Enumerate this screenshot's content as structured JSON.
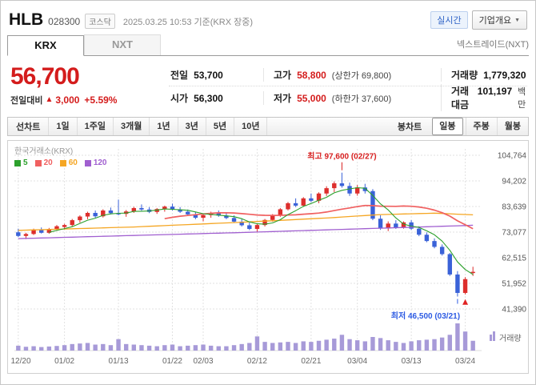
{
  "header": {
    "name": "HLB",
    "code": "028300",
    "market": "코스닥",
    "timestamp": "2025.03.25 10:53 기준(KRX 장중)",
    "realtime_label": "실시간",
    "overview_label": "기업개요"
  },
  "tabs": {
    "krx": "KRX",
    "nxt": "NXT",
    "nxt_link": "넥스트레이드(NXT)"
  },
  "price": {
    "current": "56,700",
    "change_label": "전일대비",
    "change_arrow": "▲",
    "change_value": "3,000",
    "change_percent": "+5.59%",
    "up_color": "#d41c1c"
  },
  "quote": {
    "rows": [
      {
        "c1_label": "전일",
        "c1_value": "53,700",
        "c2_label": "고가",
        "c2_value": "58,800",
        "c2_extra": "(상한가 69,800)",
        "c3_label": "거래량",
        "c3_value": "1,779,320",
        "c3_unit": ""
      },
      {
        "c1_label": "시가",
        "c1_value": "56,300",
        "c2_label": "저가",
        "c2_value": "55,000",
        "c2_extra": "(하한가 37,600)",
        "c3_label": "거래대금",
        "c3_value": "101,197",
        "c3_unit": "백만"
      }
    ]
  },
  "toolbar": {
    "line_chart_label": "선차트",
    "periods": [
      "1일",
      "1주일",
      "3개월",
      "1년",
      "3년",
      "5년",
      "10년"
    ],
    "bong_label": "봉차트",
    "bong_items": [
      "일봉",
      "주봉",
      "월봉"
    ],
    "bong_active": "일봉"
  },
  "chart": {
    "exchange_label": "한국거래소(KRX)",
    "volume_label": "거래량",
    "ma_legend": [
      {
        "label": "5",
        "color": "#2ca02c"
      },
      {
        "label": "20",
        "color": "#f06060"
      },
      {
        "label": "60",
        "color": "#f5a623"
      },
      {
        "label": "120",
        "color": "#a05fd0"
      }
    ]
  },
  "chart_data": {
    "type": "candlestick",
    "title": "HLB daily candles with volume, KRX",
    "y_axis_values": [
      104764,
      94202,
      83639,
      73077,
      62515,
      51952,
      41390
    ],
    "y_axis_labels": [
      "104,764",
      "94,202",
      "83,639",
      "73,077",
      "62,515",
      "51,952",
      "41,390"
    ],
    "x_ticks": [
      [
        0,
        "12/20"
      ],
      [
        6,
        "01/02"
      ],
      [
        13,
        "01/13"
      ],
      [
        20,
        "01/22"
      ],
      [
        24,
        "02/03"
      ],
      [
        31,
        "02/12"
      ],
      [
        38,
        "02/21"
      ],
      [
        44,
        "03/04"
      ],
      [
        51,
        "03/13"
      ],
      [
        58,
        "03/24"
      ]
    ],
    "candles": [
      [
        73000,
        74500,
        71000,
        71500,
        0.18
      ],
      [
        71500,
        72800,
        70200,
        72300,
        0.14
      ],
      [
        72300,
        74500,
        71900,
        74000,
        0.16
      ],
      [
        74000,
        75000,
        72500,
        72800,
        0.13
      ],
      [
        72800,
        74800,
        72400,
        74300,
        0.15
      ],
      [
        74300,
        76000,
        73600,
        75500,
        0.17
      ],
      [
        75200,
        76500,
        74100,
        76000,
        0.2
      ],
      [
        76000,
        78500,
        75400,
        78000,
        0.24
      ],
      [
        78000,
        80000,
        77000,
        79500,
        0.26
      ],
      [
        79500,
        81500,
        78400,
        81000,
        0.28
      ],
      [
        81000,
        82000,
        79000,
        79600,
        0.22
      ],
      [
        79600,
        82500,
        79100,
        82000,
        0.24
      ],
      [
        82000,
        83200,
        80400,
        80900,
        0.2
      ],
      [
        80900,
        86500,
        80000,
        80600,
        0.42
      ],
      [
        80600,
        82200,
        79400,
        81600,
        0.24
      ],
      [
        81600,
        83500,
        81000,
        83000,
        0.22
      ],
      [
        83000,
        84500,
        81900,
        82400,
        0.2
      ],
      [
        82400,
        83400,
        80900,
        81400,
        0.18
      ],
      [
        81400,
        83000,
        80600,
        82600,
        0.16
      ],
      [
        82600,
        84000,
        81500,
        83600,
        0.2
      ],
      [
        83600,
        84800,
        82000,
        82400,
        0.22
      ],
      [
        82400,
        83400,
        81000,
        81500,
        0.16
      ],
      [
        81500,
        82400,
        79900,
        80400,
        0.18
      ],
      [
        80400,
        81400,
        78400,
        79000,
        0.2
      ],
      [
        79000,
        80600,
        77500,
        80100,
        0.22
      ],
      [
        80100,
        81500,
        79000,
        81000,
        0.18
      ],
      [
        81000,
        82000,
        79400,
        79900,
        0.16
      ],
      [
        79900,
        81000,
        78400,
        78900,
        0.16
      ],
      [
        78900,
        80000,
        77000,
        77400,
        0.2
      ],
      [
        77400,
        78500,
        75400,
        75900,
        0.24
      ],
      [
        75900,
        77000,
        73900,
        74400,
        0.28
      ],
      [
        74400,
        76500,
        73000,
        76000,
        0.52
      ],
      [
        76000,
        78500,
        75400,
        78100,
        0.32
      ],
      [
        78100,
        80500,
        77400,
        80000,
        0.28
      ],
      [
        80000,
        83000,
        79400,
        82500,
        0.3
      ],
      [
        82500,
        85500,
        82000,
        85000,
        0.32
      ],
      [
        85000,
        87000,
        83400,
        84000,
        0.28
      ],
      [
        84000,
        87500,
        83500,
        87000,
        0.34
      ],
      [
        87000,
        89000,
        85400,
        86000,
        0.32
      ],
      [
        86000,
        89500,
        85000,
        89000,
        0.36
      ],
      [
        89000,
        92000,
        88000,
        91200,
        0.4
      ],
      [
        91200,
        94000,
        89600,
        93200,
        0.44
      ],
      [
        93200,
        97600,
        91400,
        92100,
        0.58
      ],
      [
        92100,
        93500,
        88000,
        89000,
        0.42
      ],
      [
        89000,
        92500,
        88100,
        91500,
        0.38
      ],
      [
        91500,
        93000,
        89000,
        90000,
        0.34
      ],
      [
        90000,
        90800,
        78000,
        78600,
        0.5
      ],
      [
        78600,
        80000,
        74000,
        74600,
        0.46
      ],
      [
        74600,
        77500,
        73500,
        76600,
        0.38
      ],
      [
        76600,
        78000,
        74400,
        75000,
        0.32
      ],
      [
        75000,
        77500,
        74500,
        77100,
        0.28
      ],
      [
        77100,
        78000,
        74000,
        74500,
        0.34
      ],
      [
        74500,
        75500,
        71400,
        72000,
        0.38
      ],
      [
        72000,
        73000,
        68900,
        69400,
        0.4
      ],
      [
        69400,
        70500,
        66400,
        67000,
        0.42
      ],
      [
        67000,
        68000,
        63400,
        64000,
        0.48
      ],
      [
        64000,
        64500,
        55000,
        55600,
        0.58
      ],
      [
        55600,
        57000,
        46500,
        48000,
        1.0
      ],
      [
        48000,
        54500,
        47400,
        53700,
        0.7
      ],
      [
        56300,
        58800,
        55000,
        56700,
        0.36
      ]
    ],
    "ma": {
      "ma5_period": 5,
      "ma20_period": 20,
      "ma60_points": [
        [
          0,
          73800
        ],
        [
          15,
          75200
        ],
        [
          30,
          77300
        ],
        [
          40,
          78900
        ],
        [
          47,
          80300
        ],
        [
          54,
          80900
        ],
        [
          59,
          80200
        ]
      ],
      "ma120_points": [
        [
          0,
          70400
        ],
        [
          30,
          73000
        ],
        [
          59,
          75900
        ]
      ]
    },
    "annotations": {
      "high": {
        "label": "최고 97,600 (02/27)",
        "index": 42,
        "price": 97600,
        "color": "#d82020"
      },
      "low": {
        "label": "최저 46,500 (03/21)",
        "index": 57,
        "price": 46500,
        "color": "#2d5be3"
      }
    },
    "marker": {
      "index": 58,
      "type": "up-arrow",
      "color": "#e02222"
    },
    "colors": {
      "up": "#dd2e2c",
      "down": "#3a62d8",
      "volume": "#a79ad8",
      "ma5": "#2ca02c",
      "ma20": "#f06060",
      "ma60": "#f5a623",
      "ma120": "#a05fd0",
      "grid": "#e2e2e2",
      "axis_text": "#666666"
    }
  }
}
